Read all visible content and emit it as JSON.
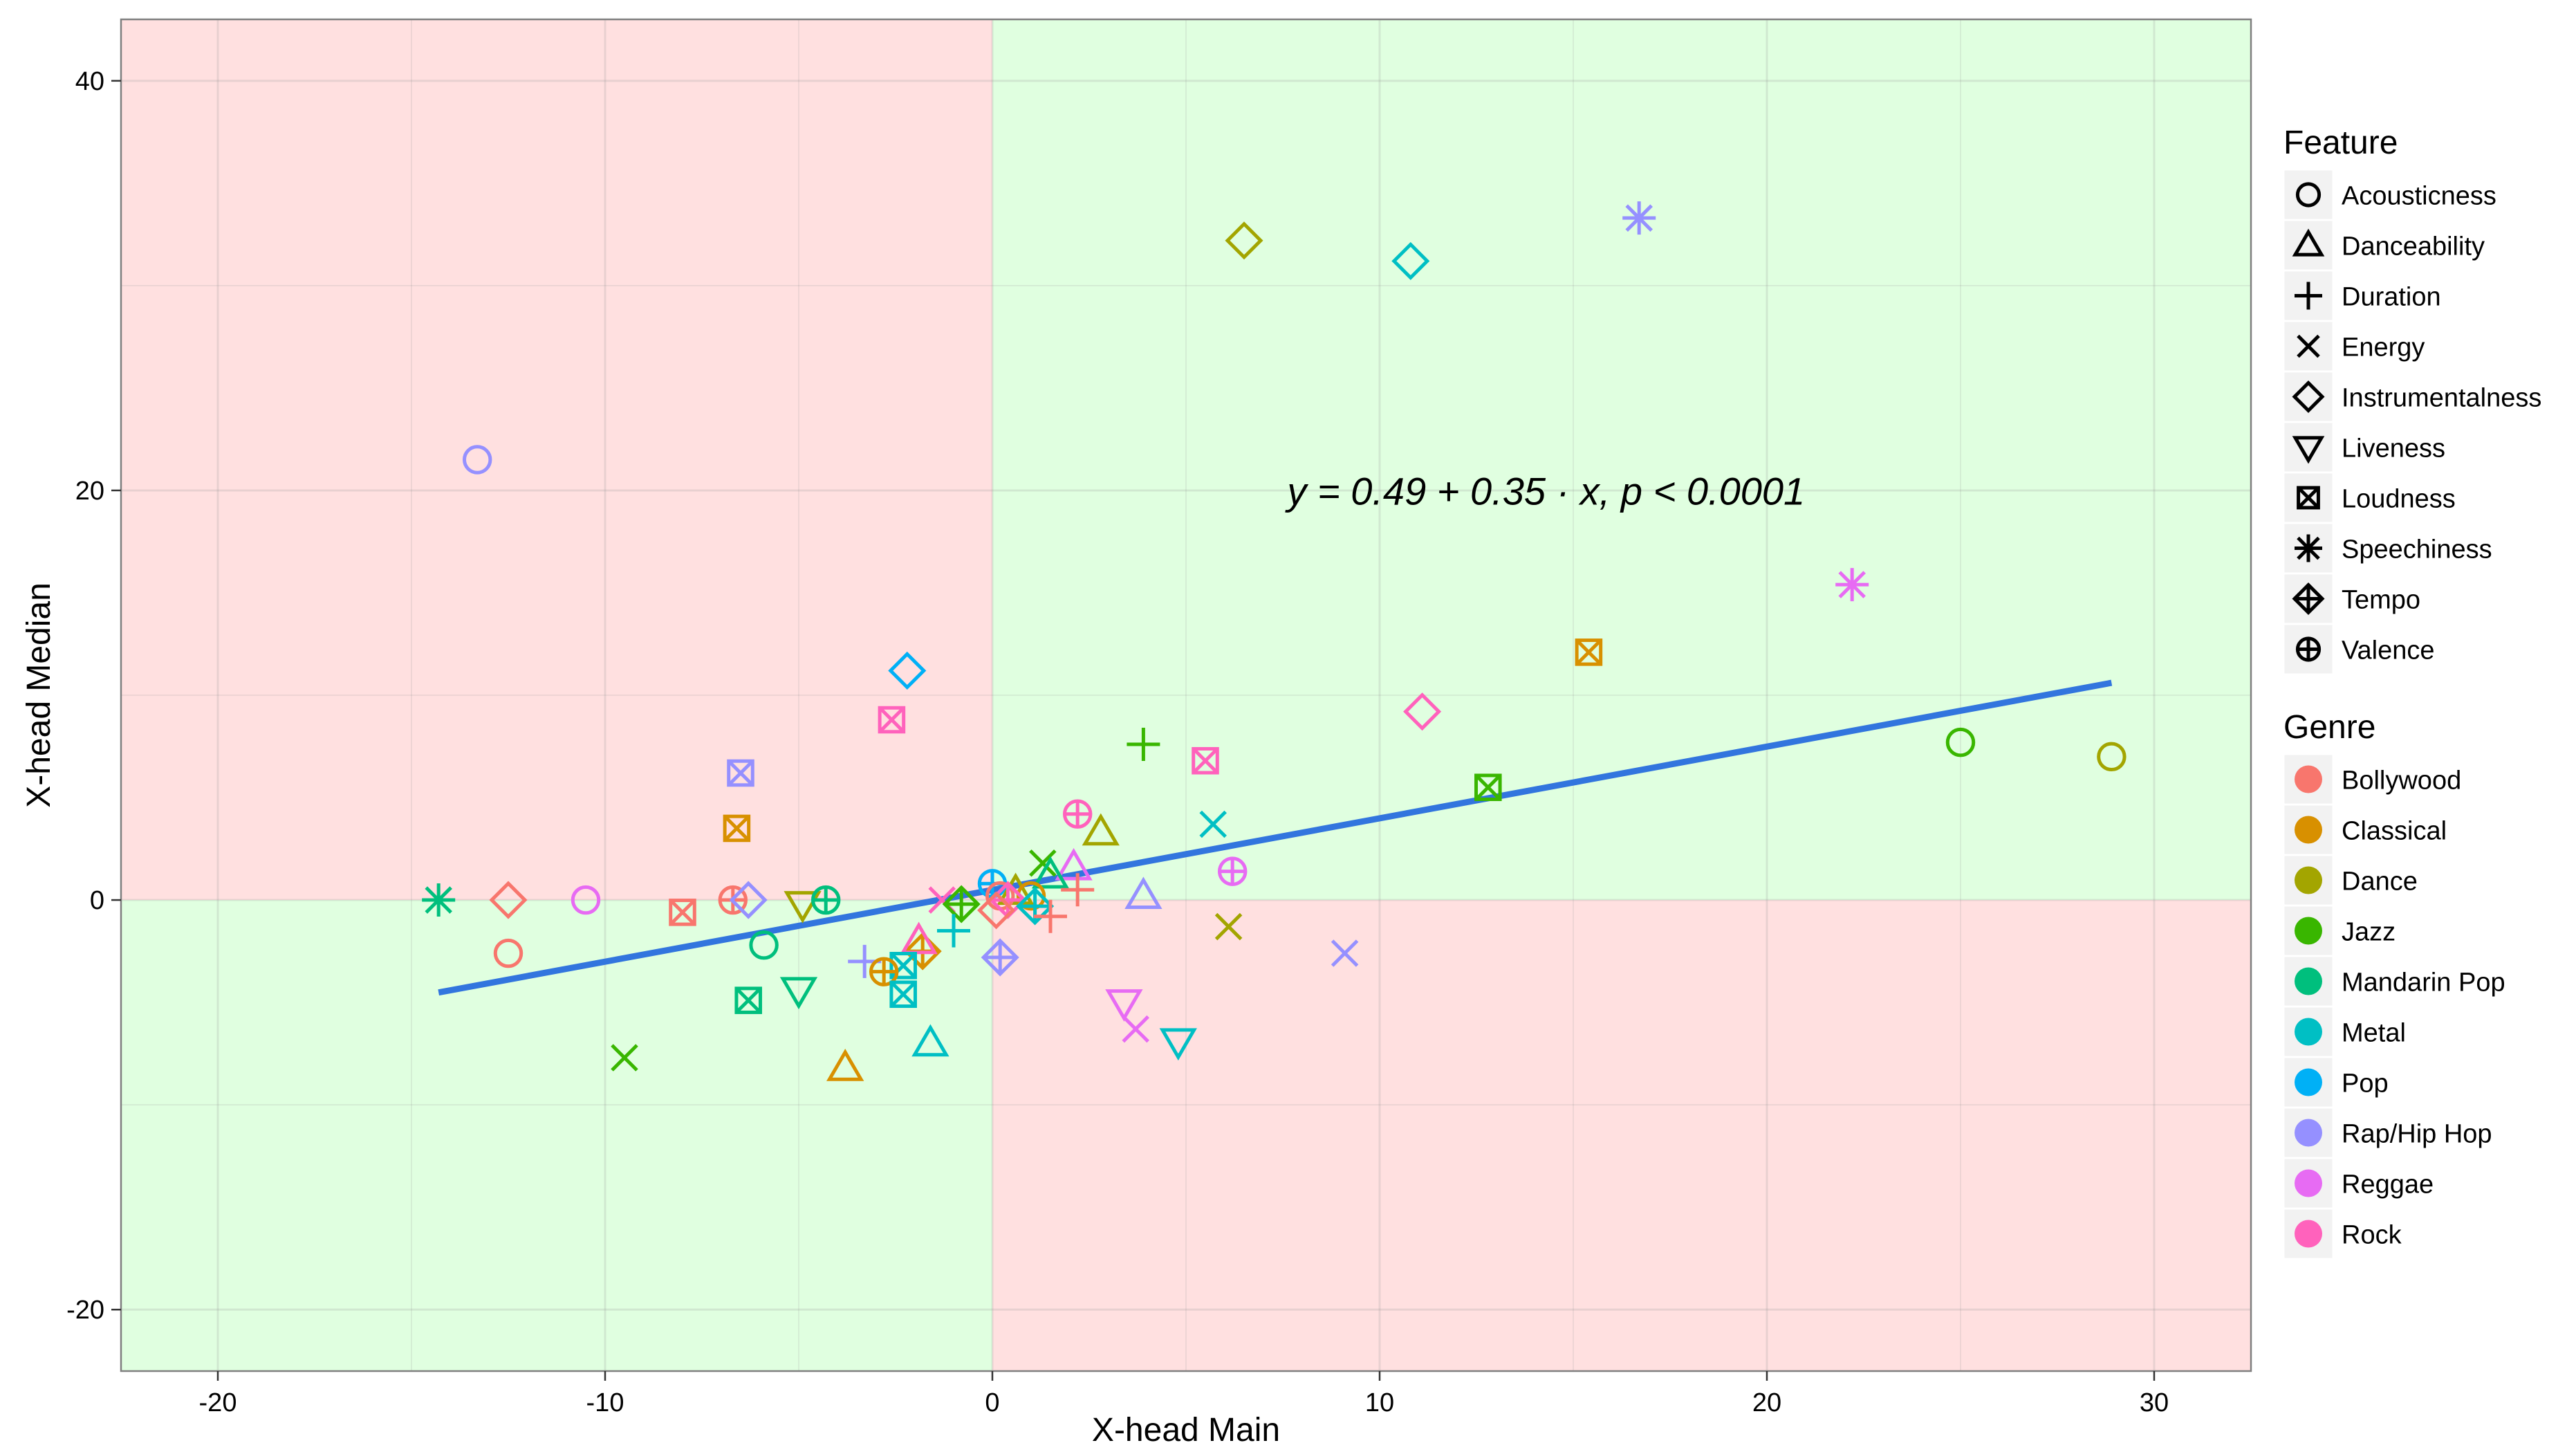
{
  "chart_data": {
    "type": "scatter",
    "xlabel": "X-head Main",
    "ylabel": "X-head Median",
    "xlim": [
      -22.5,
      32.5
    ],
    "ylim": [
      -23,
      43
    ],
    "x_ticks": [
      -20,
      -10,
      0,
      10,
      20,
      30
    ],
    "y_ticks": [
      -20,
      0,
      20,
      40
    ],
    "x_tick_labels": [
      "-20",
      "-10",
      "0",
      "10",
      "20",
      "30"
    ],
    "y_tick_labels": [
      "-20",
      "0",
      "20",
      "40"
    ],
    "grid": true,
    "quadrant_background": {
      "top_left": "#ffe0e0",
      "top_right": "#e0ffe0",
      "bottom_left": "#e0ffe0",
      "bottom_right": "#ffe0e0"
    },
    "regression": {
      "intercept": 0.49,
      "slope": 0.35,
      "x_range": [
        -14.3,
        28.9
      ],
      "label": "y = 0.49 + 0.35 · x,  p < 0.0001",
      "color": "#3275de"
    },
    "legend_position": "right",
    "feature_legend": {
      "title": "Feature",
      "items": [
        {
          "label": "Acousticness",
          "shape": "circle"
        },
        {
          "label": "Danceability",
          "shape": "triangle"
        },
        {
          "label": "Duration",
          "shape": "plus"
        },
        {
          "label": "Energy",
          "shape": "cross"
        },
        {
          "label": "Instrumentalness",
          "shape": "diamond"
        },
        {
          "label": "Liveness",
          "shape": "triangle-down"
        },
        {
          "label": "Loudness",
          "shape": "square-cross"
        },
        {
          "label": "Speechiness",
          "shape": "asterisk"
        },
        {
          "label": "Tempo",
          "shape": "diamond-plus"
        },
        {
          "label": "Valence",
          "shape": "circle-plus"
        }
      ]
    },
    "genre_legend": {
      "title": "Genre",
      "items": [
        {
          "label": "Bollywood",
          "color": "#F8766D"
        },
        {
          "label": "Classical",
          "color": "#D89000"
        },
        {
          "label": "Dance",
          "color": "#A3A500"
        },
        {
          "label": "Jazz",
          "color": "#39B600"
        },
        {
          "label": "Mandarin Pop",
          "color": "#00BF7D"
        },
        {
          "label": "Metal",
          "color": "#00BFC4"
        },
        {
          "label": "Pop",
          "color": "#00B0F6"
        },
        {
          "label": "Rap/Hip Hop",
          "color": "#9590FF"
        },
        {
          "label": "Reggae",
          "color": "#E76BF3"
        },
        {
          "label": "Rock",
          "color": "#FF62BC"
        }
      ]
    },
    "points": [
      {
        "x": 6.5,
        "y": 32.2,
        "shape": "diamond",
        "color": "#A3A500"
      },
      {
        "x": 10.8,
        "y": 31.2,
        "shape": "diamond",
        "color": "#00BFC4"
      },
      {
        "x": 16.7,
        "y": 33.3,
        "shape": "asterisk",
        "color": "#9590FF"
      },
      {
        "x": -13.3,
        "y": 21.5,
        "shape": "circle",
        "color": "#9590FF"
      },
      {
        "x": 22.2,
        "y": 15.4,
        "shape": "asterisk",
        "color": "#E76BF3"
      },
      {
        "x": 15.4,
        "y": 12.1,
        "shape": "square-cross",
        "color": "#D89000"
      },
      {
        "x": -2.2,
        "y": 11.2,
        "shape": "diamond",
        "color": "#00B0F6"
      },
      {
        "x": 11.1,
        "y": 9.2,
        "shape": "diamond",
        "color": "#FF62BC"
      },
      {
        "x": -2.6,
        "y": 8.8,
        "shape": "square-cross",
        "color": "#FF62BC"
      },
      {
        "x": 25.0,
        "y": 7.7,
        "shape": "circle",
        "color": "#39B600"
      },
      {
        "x": 28.9,
        "y": 7.0,
        "shape": "circle",
        "color": "#A3A500"
      },
      {
        "x": 3.9,
        "y": 7.6,
        "shape": "plus",
        "color": "#39B600"
      },
      {
        "x": 5.5,
        "y": 6.8,
        "shape": "square-cross",
        "color": "#FF62BC"
      },
      {
        "x": -6.5,
        "y": 6.2,
        "shape": "square-cross",
        "color": "#9590FF"
      },
      {
        "x": 12.8,
        "y": 5.5,
        "shape": "square-cross",
        "color": "#39B600"
      },
      {
        "x": 2.2,
        "y": 4.2,
        "shape": "circle-plus",
        "color": "#FF62BC"
      },
      {
        "x": 5.7,
        "y": 3.7,
        "shape": "cross",
        "color": "#00BFC4"
      },
      {
        "x": -6.6,
        "y": 3.5,
        "shape": "square-cross",
        "color": "#D89000"
      },
      {
        "x": 2.8,
        "y": 3.3,
        "shape": "triangle",
        "color": "#A3A500"
      },
      {
        "x": 1.3,
        "y": 1.8,
        "shape": "cross",
        "color": "#39B600"
      },
      {
        "x": 2.1,
        "y": 1.6,
        "shape": "triangle",
        "color": "#E76BF3"
      },
      {
        "x": 6.2,
        "y": 1.4,
        "shape": "circle-plus",
        "color": "#E76BF3"
      },
      {
        "x": 1.5,
        "y": 1.2,
        "shape": "triangle",
        "color": "#00BF7D"
      },
      {
        "x": 2.2,
        "y": 0.5,
        "shape": "plus",
        "color": "#F8766D"
      },
      {
        "x": 0.0,
        "y": 0.8,
        "shape": "circle-plus",
        "color": "#00B0F6"
      },
      {
        "x": 0.6,
        "y": 0.4,
        "shape": "triangle",
        "color": "#A3A500"
      },
      {
        "x": 1.0,
        "y": 0.2,
        "shape": "circle",
        "color": "#D89000"
      },
      {
        "x": 3.9,
        "y": 0.2,
        "shape": "triangle",
        "color": "#9590FF"
      },
      {
        "x": -14.3,
        "y": 0.0,
        "shape": "asterisk",
        "color": "#00BF7D"
      },
      {
        "x": -12.5,
        "y": 0.0,
        "shape": "diamond",
        "color": "#F8766D"
      },
      {
        "x": -10.5,
        "y": 0.0,
        "shape": "circle",
        "color": "#E76BF3"
      },
      {
        "x": -6.7,
        "y": 0.0,
        "shape": "circle-plus",
        "color": "#F8766D"
      },
      {
        "x": -6.3,
        "y": 0.0,
        "shape": "diamond",
        "color": "#9590FF"
      },
      {
        "x": -4.9,
        "y": -0.2,
        "shape": "triangle-down",
        "color": "#A3A500"
      },
      {
        "x": -4.3,
        "y": 0.0,
        "shape": "circle-plus",
        "color": "#00BF7D"
      },
      {
        "x": -1.3,
        "y": 0.0,
        "shape": "cross",
        "color": "#FF62BC"
      },
      {
        "x": -0.8,
        "y": -0.2,
        "shape": "diamond-plus",
        "color": "#39B600"
      },
      {
        "x": 0.2,
        "y": 0.2,
        "shape": "circle",
        "color": "#F8766D"
      },
      {
        "x": 0.4,
        "y": 0.0,
        "shape": "diamond-plus",
        "color": "#FF62BC"
      },
      {
        "x": 1.1,
        "y": -0.3,
        "shape": "diamond-plus",
        "color": "#00BFC4"
      },
      {
        "x": 0.1,
        "y": -0.5,
        "shape": "diamond",
        "color": "#F8766D"
      },
      {
        "x": 1.5,
        "y": -0.8,
        "shape": "plus",
        "color": "#F8766D"
      },
      {
        "x": -8.0,
        "y": -0.6,
        "shape": "square-cross",
        "color": "#F8766D"
      },
      {
        "x": -12.5,
        "y": -2.6,
        "shape": "circle",
        "color": "#F8766D"
      },
      {
        "x": -5.9,
        "y": -2.2,
        "shape": "circle",
        "color": "#00BF7D"
      },
      {
        "x": -1.0,
        "y": -1.5,
        "shape": "plus",
        "color": "#00BFC4"
      },
      {
        "x": -1.8,
        "y": -2.5,
        "shape": "diamond-plus",
        "color": "#D89000"
      },
      {
        "x": -1.9,
        "y": -2.0,
        "shape": "triangle",
        "color": "#FF62BC"
      },
      {
        "x": -3.3,
        "y": -3.0,
        "shape": "plus",
        "color": "#9590FF"
      },
      {
        "x": -2.3,
        "y": -3.2,
        "shape": "square-cross",
        "color": "#00BFC4"
      },
      {
        "x": -2.8,
        "y": -3.5,
        "shape": "circle-plus",
        "color": "#D89000"
      },
      {
        "x": 0.2,
        "y": -2.8,
        "shape": "diamond-plus",
        "color": "#9590FF"
      },
      {
        "x": 6.1,
        "y": -1.3,
        "shape": "cross",
        "color": "#A3A500"
      },
      {
        "x": 9.1,
        "y": -2.6,
        "shape": "cross",
        "color": "#9590FF"
      },
      {
        "x": -5.0,
        "y": -4.4,
        "shape": "triangle-down",
        "color": "#00BF7D"
      },
      {
        "x": -6.3,
        "y": -4.9,
        "shape": "square-cross",
        "color": "#00BF7D"
      },
      {
        "x": -2.3,
        "y": -4.6,
        "shape": "square-cross",
        "color": "#00BFC4"
      },
      {
        "x": 3.4,
        "y": -5.0,
        "shape": "triangle-down",
        "color": "#E76BF3"
      },
      {
        "x": 3.7,
        "y": -6.3,
        "shape": "cross",
        "color": "#E76BF3"
      },
      {
        "x": -1.6,
        "y": -7.0,
        "shape": "triangle",
        "color": "#00BFC4"
      },
      {
        "x": 4.8,
        "y": -6.9,
        "shape": "triangle-down",
        "color": "#00BFC4"
      },
      {
        "x": -9.5,
        "y": -7.7,
        "shape": "cross",
        "color": "#39B600"
      },
      {
        "x": -3.8,
        "y": -8.2,
        "shape": "triangle",
        "color": "#D89000"
      }
    ]
  }
}
